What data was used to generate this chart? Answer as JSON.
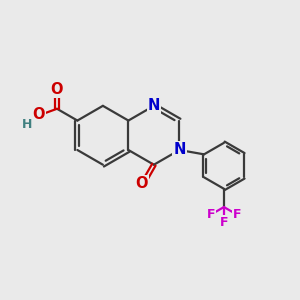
{
  "bg_color": "#eaeaea",
  "bond_color": "#3a3a3a",
  "bond_width": 1.6,
  "dbo": 0.07,
  "font_size": 10.5,
  "N_color": "#0000cc",
  "O_color": "#cc0000",
  "F_color": "#cc00cc",
  "H_color": "#408080",
  "figsize": [
    3.0,
    3.0
  ],
  "dpi": 100,
  "xlim": [
    0,
    10
  ],
  "ylim": [
    0,
    10
  ]
}
